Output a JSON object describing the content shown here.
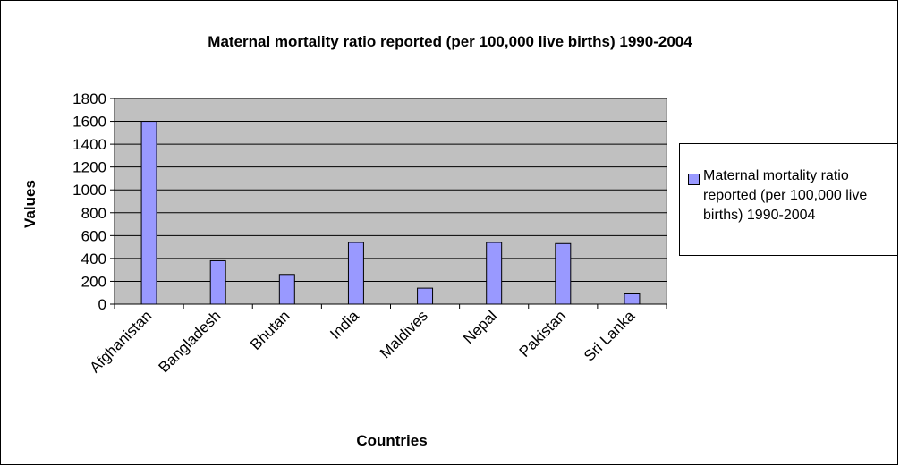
{
  "chart_data": {
    "type": "bar",
    "title": "Maternal mortality ratio reported (per 100,000 live births) 1990-2004",
    "xlabel": "Countries",
    "ylabel": "Values",
    "categories": [
      "Afghanistan",
      "Bangladesh",
      "Bhutan",
      "India",
      "Maldives",
      "Nepal",
      "Pakistan",
      "Sri Lanka"
    ],
    "series": [
      {
        "name": "Maternal mortality ratio reported (per 100,000 live births) 1990-2004",
        "values": [
          1600,
          380,
          260,
          540,
          140,
          540,
          530,
          90
        ],
        "color": "#9999ff"
      }
    ],
    "ylim": [
      0,
      1800
    ],
    "yticks": [
      0,
      200,
      400,
      600,
      800,
      1000,
      1200,
      1400,
      1600,
      1800
    ],
    "grid": true,
    "plot_background": "#c0c0c0",
    "legend_position": "right"
  }
}
